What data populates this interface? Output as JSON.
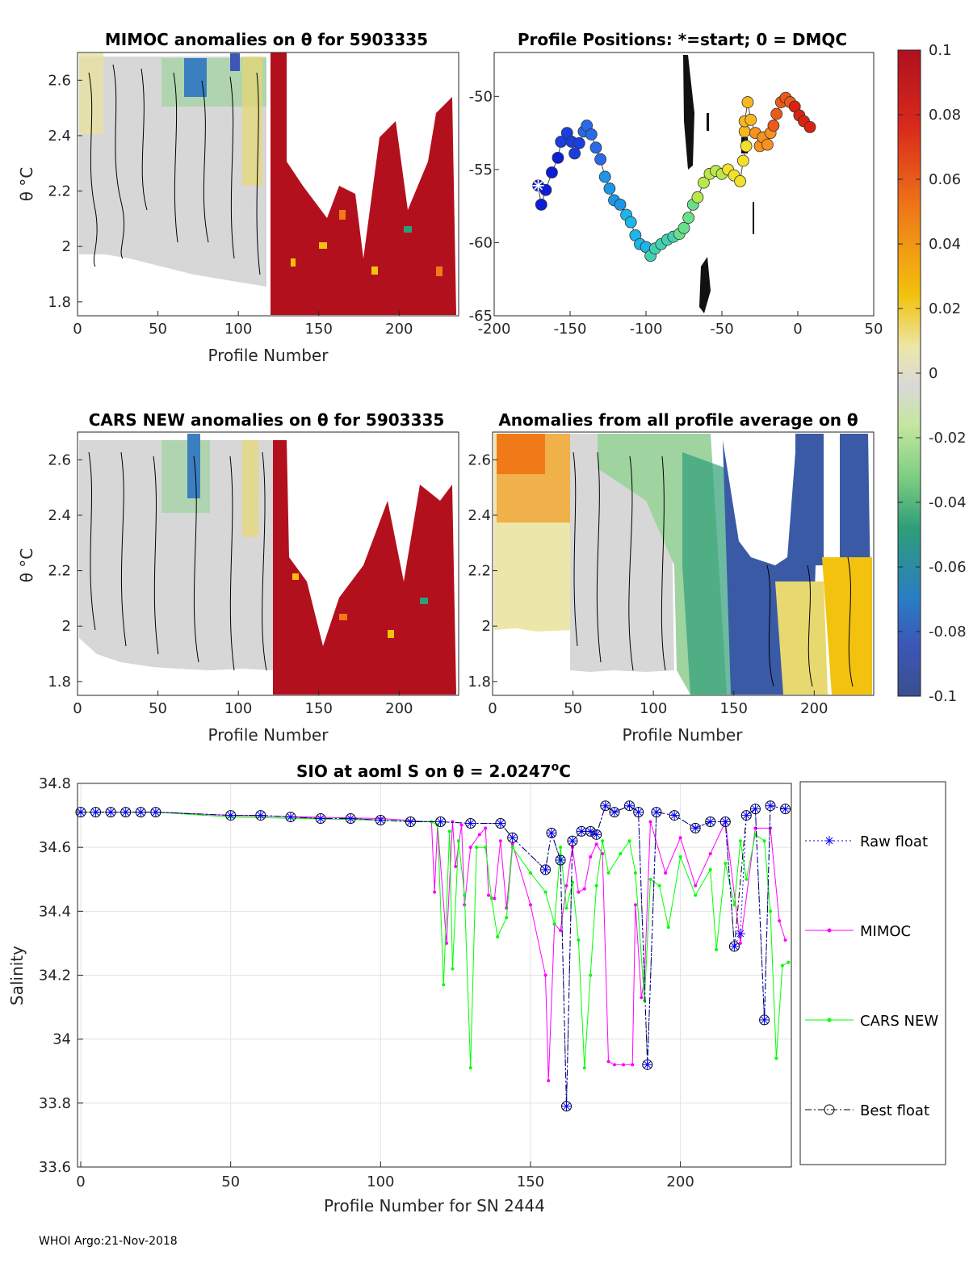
{
  "chart_data": [
    {
      "type": "heatmap",
      "id": "p1",
      "title": "MIMOC anomalies on θ  for 5903335",
      "xlabel": "Profile Number",
      "ylabel": "θ °C",
      "xlim": [
        0,
        237
      ],
      "ylim": [
        1.75,
        2.7
      ],
      "xticks": [
        0,
        50,
        100,
        150,
        200
      ],
      "yticks": [
        1.8,
        2,
        2.2,
        2.4,
        2.6
      ],
      "ytick_labels": [
        "1.8",
        "2",
        "2.2",
        "2.4",
        "2.6"
      ],
      "colored_region_note": "profiles after ~120 strongly positive (red)"
    },
    {
      "type": "scatter",
      "id": "p2",
      "title": "Profile Positions: *=start; 0 = DMQC",
      "xlim": [
        -200,
        50
      ],
      "ylim": [
        -65,
        -47
      ],
      "xticks": [
        -200,
        -150,
        -100,
        -50,
        0,
        50
      ],
      "xtick_labels": [
        "-200",
        "-150",
        "-100",
        "-50",
        "0",
        "50"
      ],
      "yticks": [
        -50,
        -55,
        -60,
        -65
      ],
      "ytick_labels": [
        "-50",
        "-55",
        "-60",
        "-65"
      ],
      "track": [
        [
          -171,
          -56.1
        ],
        [
          -169,
          -57.4
        ],
        [
          -166,
          -56.4
        ],
        [
          -162,
          -55.2
        ],
        [
          -158,
          -54.2
        ],
        [
          -156,
          -53.1
        ],
        [
          -152,
          -52.5
        ],
        [
          -149,
          -53.1
        ],
        [
          -147,
          -53.9
        ],
        [
          -144,
          -53.2
        ],
        [
          -141,
          -52.4
        ],
        [
          -139,
          -52.0
        ],
        [
          -136,
          -52.6
        ],
        [
          -133,
          -53.5
        ],
        [
          -130,
          -54.3
        ],
        [
          -127,
          -55.5
        ],
        [
          -124,
          -56.3
        ],
        [
          -121,
          -57.1
        ],
        [
          -117,
          -57.4
        ],
        [
          -113,
          -58.1
        ],
        [
          -110,
          -58.6
        ],
        [
          -107,
          -59.5
        ],
        [
          -104,
          -60.1
        ],
        [
          -100,
          -60.3
        ],
        [
          -97,
          -60.9
        ],
        [
          -94,
          -60.4
        ],
        [
          -90,
          -60.1
        ],
        [
          -86,
          -59.8
        ],
        [
          -82,
          -59.6
        ],
        [
          -78,
          -59.4
        ],
        [
          -75,
          -59.0
        ],
        [
          -72,
          -58.3
        ],
        [
          -69,
          -57.4
        ],
        [
          -66,
          -56.9
        ],
        [
          -62,
          -55.9
        ],
        [
          -58,
          -55.3
        ],
        [
          -54,
          -55.1
        ],
        [
          -50,
          -55.3
        ],
        [
          -46,
          -55.0
        ],
        [
          -42,
          -55.4
        ],
        [
          -38,
          -55.8
        ],
        [
          -36,
          -54.4
        ],
        [
          -34,
          -53.4
        ],
        [
          -35,
          -52.4
        ],
        [
          -35,
          -51.7
        ],
        [
          -33,
          -50.4
        ],
        [
          -31,
          -51.6
        ],
        [
          -28,
          -52.5
        ],
        [
          -25,
          -53.4
        ],
        [
          -23,
          -52.8
        ],
        [
          -20,
          -53.3
        ],
        [
          -18,
          -52.5
        ],
        [
          -16,
          -52.0
        ],
        [
          -14,
          -51.2
        ],
        [
          -11,
          -50.4
        ],
        [
          -8,
          -50.1
        ],
        [
          -5,
          -50.4
        ],
        [
          -2,
          -50.7
        ],
        [
          1,
          -51.3
        ],
        [
          4,
          -51.7
        ],
        [
          8,
          -52.1
        ]
      ],
      "colorbar": {
        "min": -0.1,
        "max": 0.1,
        "ticks": [
          0.1,
          0.08,
          0.06,
          0.04,
          0.02,
          0,
          -0.02,
          -0.04,
          -0.06,
          -0.08,
          -0.1
        ],
        "tick_labels": [
          "0.1",
          "0.08",
          "0.06",
          "0.04",
          "0.02",
          "0",
          "-0.02",
          "-0.04",
          "-0.06",
          "-0.08",
          "-0.1"
        ]
      }
    },
    {
      "type": "heatmap",
      "id": "p3",
      "title": "CARS NEW anomalies on θ for 5903335",
      "xlabel": "Profile Number",
      "ylabel": "θ °C",
      "xlim": [
        0,
        237
      ],
      "ylim": [
        1.75,
        2.7
      ],
      "xticks": [
        0,
        50,
        100,
        150,
        200
      ],
      "yticks": [
        1.8,
        2,
        2.2,
        2.4,
        2.6
      ],
      "ytick_labels": [
        "1.8",
        "2",
        "2.2",
        "2.4",
        "2.6"
      ]
    },
    {
      "type": "heatmap",
      "id": "p4",
      "title": "Anomalies from all profile average on θ",
      "xlabel": "Profile Number",
      "xlim": [
        0,
        237
      ],
      "ylim": [
        1.75,
        2.7
      ],
      "xticks": [
        0,
        50,
        100,
        150,
        200
      ],
      "yticks": [
        1.8,
        2,
        2.2,
        2.4,
        2.6
      ],
      "ytick_labels": [
        "1.8",
        "2",
        "2.2",
        "2.4",
        "2.6"
      ]
    },
    {
      "type": "line",
      "id": "p5",
      "title": "SIO at aoml S on θ = 2.0247°C",
      "title_main": "SIO at aoml S on θ = 2.0247",
      "title_sup": "o",
      "title_end": "C",
      "xlabel": "Profile Number for SN 2444",
      "ylabel": "Salinity",
      "xlim": [
        0,
        237
      ],
      "ylim": [
        33.6,
        34.8
      ],
      "xticks": [
        0,
        50,
        100,
        150,
        200
      ],
      "yticks": [
        33.6,
        33.8,
        34,
        34.2,
        34.4,
        34.6,
        34.8
      ],
      "ytick_labels": [
        "33.6",
        "33.8",
        "34",
        "34.2",
        "34.4",
        "34.6",
        "34.8"
      ],
      "grid": true,
      "series": [
        {
          "name": "Raw float",
          "color": "#0000ff",
          "style": "dotted",
          "marker": "*",
          "points": [
            [
              0,
              34.71
            ],
            [
              5,
              34.71
            ],
            [
              10,
              34.71
            ],
            [
              15,
              34.71
            ],
            [
              20,
              34.71
            ],
            [
              25,
              34.71
            ],
            [
              50,
              34.7
            ],
            [
              60,
              34.7
            ],
            [
              70,
              34.695
            ],
            [
              80,
              34.69
            ],
            [
              90,
              34.69
            ],
            [
              100,
              34.685
            ],
            [
              110,
              34.68
            ],
            [
              120,
              34.68
            ],
            [
              130,
              34.675
            ],
            [
              140,
              34.675
            ],
            [
              144,
              34.63
            ],
            [
              155,
              34.53
            ],
            [
              157,
              34.645
            ],
            [
              160,
              34.56
            ],
            [
              162,
              33.79
            ],
            [
              164,
              34.62
            ],
            [
              167,
              34.65
            ],
            [
              170,
              34.65
            ],
            [
              172,
              34.64
            ],
            [
              175,
              34.73
            ],
            [
              178,
              34.71
            ],
            [
              183,
              34.73
            ],
            [
              186,
              34.71
            ],
            [
              189,
              33.92
            ],
            [
              192,
              34.71
            ],
            [
              198,
              34.7
            ],
            [
              205,
              34.66
            ],
            [
              210,
              34.68
            ],
            [
              215,
              34.68
            ],
            [
              218,
              34.29
            ],
            [
              220,
              34.33
            ],
            [
              222,
              34.7
            ],
            [
              225,
              34.72
            ],
            [
              228,
              34.06
            ],
            [
              230,
              34.73
            ],
            [
              235,
              34.72
            ]
          ]
        },
        {
          "name": "MIMOC",
          "color": "#ff00ff",
          "style": "solid",
          "marker": ".",
          "points": [
            [
              0,
              34.71
            ],
            [
              25,
              34.71
            ],
            [
              50,
              34.7
            ],
            [
              100,
              34.69
            ],
            [
              117,
              34.68
            ],
            [
              118,
              34.46
            ],
            [
              119,
              34.67
            ],
            [
              122,
              34.3
            ],
            [
              124,
              34.68
            ],
            [
              125,
              34.54
            ],
            [
              127,
              34.67
            ],
            [
              128,
              34.42
            ],
            [
              130,
              34.6
            ],
            [
              133,
              34.64
            ],
            [
              135,
              34.66
            ],
            [
              136,
              34.45
            ],
            [
              138,
              34.44
            ],
            [
              140,
              34.62
            ],
            [
              142,
              34.41
            ],
            [
              144,
              34.61
            ],
            [
              150,
              34.42
            ],
            [
              155,
              34.2
            ],
            [
              156,
              33.87
            ],
            [
              158,
              34.36
            ],
            [
              160,
              34.34
            ],
            [
              162,
              34.48
            ],
            [
              164,
              34.6
            ],
            [
              166,
              34.46
            ],
            [
              168,
              34.47
            ],
            [
              170,
              34.57
            ],
            [
              172,
              34.61
            ],
            [
              174,
              34.58
            ],
            [
              176,
              33.93
            ],
            [
              178,
              33.92
            ],
            [
              181,
              33.92
            ],
            [
              184,
              33.92
            ],
            [
              185,
              34.42
            ],
            [
              187,
              34.13
            ],
            [
              188,
              34.19
            ],
            [
              190,
              34.68
            ],
            [
              195,
              34.52
            ],
            [
              200,
              34.63
            ],
            [
              205,
              34.48
            ],
            [
              210,
              34.58
            ],
            [
              215,
              34.68
            ],
            [
              220,
              34.3
            ],
            [
              225,
              34.66
            ],
            [
              230,
              34.66
            ],
            [
              233,
              34.37
            ],
            [
              235,
              34.31
            ]
          ]
        },
        {
          "name": "CARS NEW",
          "color": "#00ff00",
          "style": "solid",
          "marker": ".",
          "points": [
            [
              0,
              34.71
            ],
            [
              25,
              34.71
            ],
            [
              50,
              34.695
            ],
            [
              100,
              34.685
            ],
            [
              117,
              34.68
            ],
            [
              119,
              34.67
            ],
            [
              121,
              34.17
            ],
            [
              123,
              34.65
            ],
            [
              124,
              34.22
            ],
            [
              126,
              34.62
            ],
            [
              128,
              34.45
            ],
            [
              130,
              33.91
            ],
            [
              132,
              34.6
            ],
            [
              135,
              34.6
            ],
            [
              137,
              34.44
            ],
            [
              139,
              34.32
            ],
            [
              142,
              34.38
            ],
            [
              144,
              34.6
            ],
            [
              150,
              34.52
            ],
            [
              155,
              34.46
            ],
            [
              158,
              34.36
            ],
            [
              160,
              34.6
            ],
            [
              162,
              34.41
            ],
            [
              164,
              34.49
            ],
            [
              166,
              34.31
            ],
            [
              168,
              33.91
            ],
            [
              170,
              34.2
            ],
            [
              172,
              34.48
            ],
            [
              174,
              34.62
            ],
            [
              176,
              34.52
            ],
            [
              180,
              34.58
            ],
            [
              183,
              34.62
            ],
            [
              185,
              34.52
            ],
            [
              188,
              34.12
            ],
            [
              190,
              34.5
            ],
            [
              193,
              34.48
            ],
            [
              196,
              34.35
            ],
            [
              200,
              34.57
            ],
            [
              205,
              34.45
            ],
            [
              210,
              34.53
            ],
            [
              212,
              34.28
            ],
            [
              215,
              34.55
            ],
            [
              218,
              34.42
            ],
            [
              220,
              34.62
            ],
            [
              222,
              34.5
            ],
            [
              225,
              34.64
            ],
            [
              228,
              34.62
            ],
            [
              230,
              34.4
            ],
            [
              232,
              33.94
            ],
            [
              234,
              34.23
            ],
            [
              236,
              34.24
            ]
          ]
        },
        {
          "name": "Best float",
          "color": "#000000",
          "style": "dashdot",
          "marker": "o",
          "points": [
            [
              0,
              34.71
            ],
            [
              5,
              34.71
            ],
            [
              10,
              34.71
            ],
            [
              15,
              34.71
            ],
            [
              20,
              34.71
            ],
            [
              25,
              34.71
            ],
            [
              50,
              34.7
            ],
            [
              60,
              34.7
            ],
            [
              70,
              34.695
            ],
            [
              80,
              34.69
            ],
            [
              90,
              34.69
            ],
            [
              100,
              34.685
            ],
            [
              110,
              34.68
            ],
            [
              120,
              34.68
            ],
            [
              130,
              34.675
            ],
            [
              140,
              34.675
            ],
            [
              144,
              34.63
            ],
            [
              155,
              34.53
            ],
            [
              157,
              34.645
            ],
            [
              160,
              34.56
            ],
            [
              162,
              33.79
            ],
            [
              164,
              34.62
            ],
            [
              167,
              34.65
            ],
            [
              170,
              34.65
            ],
            [
              172,
              34.64
            ],
            [
              175,
              34.73
            ],
            [
              178,
              34.71
            ],
            [
              183,
              34.73
            ],
            [
              186,
              34.71
            ],
            [
              189,
              33.92
            ],
            [
              192,
              34.71
            ],
            [
              198,
              34.7
            ],
            [
              205,
              34.66
            ],
            [
              210,
              34.68
            ],
            [
              215,
              34.68
            ],
            [
              218,
              34.29
            ],
            [
              222,
              34.7
            ],
            [
              225,
              34.72
            ],
            [
              228,
              34.06
            ],
            [
              230,
              34.73
            ],
            [
              235,
              34.72
            ]
          ]
        }
      ]
    }
  ],
  "footer": "WHOI Argo:21-Nov-2018"
}
